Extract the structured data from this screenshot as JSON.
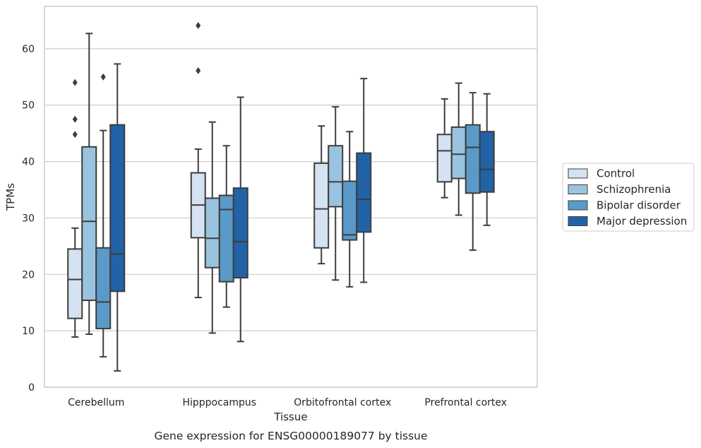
{
  "caption": "Gene expression for ENSG00000189077 by tissue",
  "chart_data": {
    "type": "boxplot",
    "title": "",
    "xlabel": "Tissue",
    "ylabel": "TPMs",
    "ylim": [
      0,
      67.5
    ],
    "yticks": [
      0,
      10,
      20,
      30,
      40,
      50,
      60
    ],
    "grid": "horizontal",
    "legend_position": "right",
    "categories": [
      "Cerebellum",
      "Hipppocampus",
      "Orbitofrontal cortex",
      "Prefrontal cortex"
    ],
    "series": [
      {
        "name": "Control",
        "color": "#d4e2f1",
        "boxes": [
          {
            "whislo": 8.9,
            "q1": 12.2,
            "med": 19.1,
            "q3": 24.5,
            "whishi": 28.2,
            "fliers": [
              54.0,
              47.5,
              44.8
            ]
          },
          {
            "whislo": 15.9,
            "q1": 26.5,
            "med": 32.3,
            "q3": 38.0,
            "whishi": 42.2,
            "fliers": [
              64.1,
              56.1
            ]
          },
          {
            "whislo": 21.9,
            "q1": 24.7,
            "med": 31.6,
            "q3": 39.7,
            "whishi": 46.3,
            "fliers": []
          },
          {
            "whislo": 33.6,
            "q1": 36.4,
            "med": 41.9,
            "q3": 44.8,
            "whishi": 51.1,
            "fliers": []
          }
        ]
      },
      {
        "name": "Schizophrenia",
        "color": "#9ac3df",
        "boxes": [
          {
            "whislo": 9.4,
            "q1": 15.4,
            "med": 29.4,
            "q3": 42.6,
            "whishi": 62.7,
            "fliers": []
          },
          {
            "whislo": 9.6,
            "q1": 21.2,
            "med": 26.4,
            "q3": 33.5,
            "whishi": 47.0,
            "fliers": []
          },
          {
            "whislo": 19.0,
            "q1": 32.0,
            "med": 36.4,
            "q3": 42.8,
            "whishi": 49.7,
            "fliers": []
          },
          {
            "whislo": 30.5,
            "q1": 37.0,
            "med": 41.3,
            "q3": 46.1,
            "whishi": 53.9,
            "fliers": []
          }
        ]
      },
      {
        "name": "Bipolar disorder",
        "color": "#5a9ac8",
        "boxes": [
          {
            "whislo": 5.4,
            "q1": 10.4,
            "med": 15.1,
            "q3": 24.7,
            "whishi": 45.5,
            "fliers": [
              55.0
            ]
          },
          {
            "whislo": 14.2,
            "q1": 18.7,
            "med": 31.5,
            "q3": 34.0,
            "whishi": 42.8,
            "fliers": []
          },
          {
            "whislo": 17.8,
            "q1": 26.1,
            "med": 27.0,
            "q3": 36.5,
            "whishi": 45.3,
            "fliers": []
          },
          {
            "whislo": 24.3,
            "q1": 34.4,
            "med": 42.5,
            "q3": 46.5,
            "whishi": 52.2,
            "fliers": []
          }
        ]
      },
      {
        "name": "Major depression",
        "color": "#2262a7",
        "boxes": [
          {
            "whislo": 2.9,
            "q1": 17.0,
            "med": 23.6,
            "q3": 46.5,
            "whishi": 57.3,
            "fliers": []
          },
          {
            "whislo": 8.1,
            "q1": 19.4,
            "med": 25.8,
            "q3": 35.3,
            "whishi": 51.4,
            "fliers": []
          },
          {
            "whislo": 18.6,
            "q1": 27.5,
            "med": 33.3,
            "q3": 41.5,
            "whishi": 54.7,
            "fliers": []
          },
          {
            "whislo": 28.7,
            "q1": 34.6,
            "med": 38.6,
            "q3": 45.3,
            "whishi": 52.0,
            "fliers": []
          }
        ]
      }
    ]
  }
}
